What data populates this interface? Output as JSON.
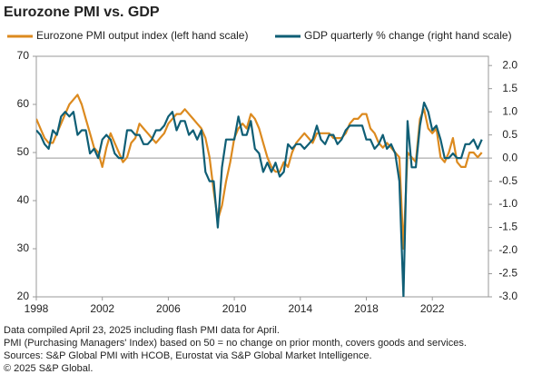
{
  "chart_data": {
    "type": "line",
    "title": "Eurozone PMI vs. GDP",
    "x": [
      1998,
      1998.25,
      1998.5,
      1998.75,
      1999,
      1999.25,
      1999.5,
      1999.75,
      2000,
      2000.25,
      2000.5,
      2000.75,
      2001,
      2001.25,
      2001.5,
      2001.75,
      2002,
      2002.25,
      2002.5,
      2002.75,
      2003,
      2003.25,
      2003.5,
      2003.75,
      2004,
      2004.25,
      2004.5,
      2004.75,
      2005,
      2005.25,
      2005.5,
      2005.75,
      2006,
      2006.25,
      2006.5,
      2006.75,
      2007,
      2007.25,
      2007.5,
      2007.75,
      2008,
      2008.25,
      2008.5,
      2008.75,
      2009,
      2009.25,
      2009.5,
      2009.75,
      2010,
      2010.25,
      2010.5,
      2010.75,
      2011,
      2011.25,
      2011.5,
      2011.75,
      2012,
      2012.25,
      2012.5,
      2012.75,
      2013,
      2013.25,
      2013.5,
      2013.75,
      2014,
      2014.25,
      2014.5,
      2014.75,
      2015,
      2015.25,
      2015.5,
      2015.75,
      2016,
      2016.25,
      2016.5,
      2016.75,
      2017,
      2017.25,
      2017.5,
      2017.75,
      2018,
      2018.25,
      2018.5,
      2018.75,
      2019,
      2019.25,
      2019.5,
      2019.75,
      2020,
      2020.25,
      2020.5,
      2020.75,
      2021,
      2021.25,
      2021.5,
      2021.75,
      2022,
      2022.25,
      2022.5,
      2022.75,
      2023,
      2023.25,
      2023.5,
      2023.75,
      2024,
      2024.25,
      2024.5,
      2024.75,
      2025
    ],
    "series": [
      {
        "name": "Eurozone PMI output index (left hand scale)",
        "color": "#dc8a1f",
        "axis": "y",
        "values": [
          57,
          55,
          53,
          52,
          52,
          54,
          56,
          58,
          60,
          61,
          62,
          60,
          57,
          54,
          51,
          50,
          47,
          51,
          54,
          52,
          50,
          48,
          49,
          52,
          53,
          56,
          55,
          54,
          53,
          52,
          53,
          54,
          56,
          57,
          58,
          58,
          59,
          58,
          57,
          56,
          55,
          53,
          49,
          42,
          36,
          39,
          44,
          48,
          53,
          55,
          56,
          55,
          58,
          57,
          55,
          52,
          49,
          47,
          46,
          46,
          48,
          47,
          50,
          52,
          53,
          54,
          53,
          52,
          54,
          54,
          54,
          54,
          53,
          53,
          53,
          54,
          56,
          57,
          57,
          58,
          58,
          55,
          54,
          52,
          51,
          52,
          51,
          50,
          49,
          30,
          50,
          49,
          48,
          57,
          59,
          55,
          54,
          55,
          49,
          48,
          50,
          53,
          48,
          47,
          47,
          50,
          50,
          49,
          50
        ]
      },
      {
        "name": "GDP quarterly % change (right hand scale)",
        "color": "#0f5e75",
        "axis": "y2",
        "values": [
          0.6,
          0.5,
          0.3,
          0.2,
          0.6,
          0.5,
          0.9,
          1.0,
          0.9,
          1.0,
          0.5,
          0.6,
          0.6,
          0.1,
          0.2,
          0.0,
          0.4,
          0.5,
          0.4,
          0.1,
          0.0,
          0.0,
          0.6,
          0.6,
          0.5,
          0.5,
          0.3,
          0.3,
          0.4,
          0.6,
          0.6,
          0.7,
          0.9,
          1.0,
          0.6,
          0.8,
          0.8,
          0.5,
          0.6,
          0.4,
          0.6,
          -0.3,
          -0.5,
          -0.5,
          -1.5,
          -0.2,
          0.4,
          0.4,
          0.4,
          0.9,
          0.5,
          0.5,
          0.8,
          0.2,
          0.1,
          -0.3,
          -0.1,
          -0.3,
          -0.1,
          -0.4,
          -0.3,
          0.3,
          0.2,
          0.3,
          0.3,
          0.2,
          0.3,
          0.4,
          0.7,
          0.4,
          0.3,
          0.5,
          0.5,
          0.3,
          0.4,
          0.6,
          0.7,
          0.7,
          0.7,
          0.7,
          0.4,
          0.4,
          0.2,
          0.3,
          0.5,
          0.2,
          0.3,
          0.1,
          -0.5,
          -3.0,
          0.8,
          -0.2,
          -0.2,
          0.7,
          1.2,
          1.0,
          0.6,
          0.7,
          0.4,
          0.0,
          0.0,
          0.1,
          0.0,
          0.0,
          0.3,
          0.3,
          0.4,
          0.2,
          0.4
        ]
      }
    ],
    "xlim": [
      1998,
      2025.4
    ],
    "xticks": [
      1998,
      2002,
      2006,
      2010,
      2014,
      2018,
      2022
    ],
    "ylim": [
      20,
      70
    ],
    "yticks": [
      20,
      30,
      40,
      50,
      60,
      70
    ],
    "y2lim": [
      -3,
      2.2
    ],
    "y2ticks": [
      {
        "value": 2,
        "label": "2.0"
      },
      1.5,
      {
        "value": 1,
        "label": "1.0"
      },
      0.5,
      {
        "value": 0,
        "label": "0.0"
      },
      -0.5,
      {
        "value": -1,
        "label": "-1.0"
      },
      -1.5,
      {
        "value": -2,
        "label": "-2.0"
      },
      -2.5,
      {
        "value": -3,
        "label": "-3.0"
      }
    ],
    "notes": [
      "Data compiled April  23, 2025 including flash PMI data for April.",
      "PMI (Purchasing Managers' Index) based on 50 = no change on prior month, covers goods and services.",
      "Sources: S&P Global PMI with HCOB, Eurostat via S&P Global Market Intelligence.",
      "© 2025 S&P Global."
    ]
  }
}
